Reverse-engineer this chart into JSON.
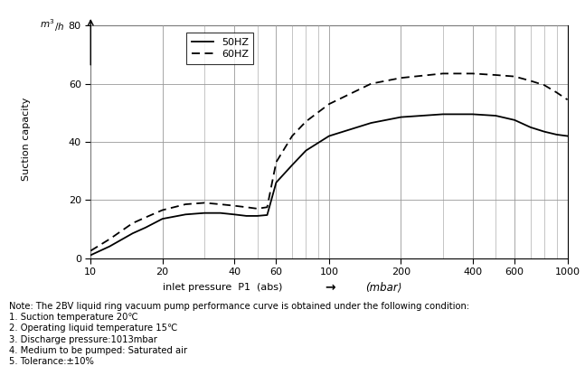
{
  "ylabel": "Suction capacity",
  "y_unit": "m³/h",
  "xlabel": "inlet pressure  P1  (abs)",
  "xlabel_unit": "(mbar⟩",
  "xlim_log": [
    10,
    1000
  ],
  "ylim": [
    0,
    80
  ],
  "yticks": [
    0,
    20,
    40,
    60,
    80
  ],
  "xticks_log": [
    10,
    20,
    40,
    60,
    100,
    200,
    400,
    600,
    1000
  ],
  "grid_color": "#999999",
  "background_color": "#ffffff",
  "curve_color": "#000000",
  "hz50_x": [
    10,
    12,
    15,
    17,
    20,
    25,
    30,
    35,
    40,
    45,
    50,
    55,
    60,
    70,
    80,
    100,
    150,
    200,
    300,
    400,
    500,
    600,
    700,
    800,
    900,
    1000
  ],
  "hz50_y": [
    1.0,
    4.0,
    8.5,
    10.5,
    13.5,
    15.0,
    15.5,
    15.5,
    15.0,
    14.5,
    14.5,
    14.8,
    26.0,
    32.0,
    37.0,
    42.0,
    46.5,
    48.5,
    49.5,
    49.5,
    49.0,
    47.5,
    45.0,
    43.5,
    42.5,
    42.0
  ],
  "hz60_x": [
    10,
    12,
    15,
    17,
    20,
    25,
    30,
    35,
    40,
    45,
    50,
    55,
    60,
    70,
    80,
    100,
    150,
    200,
    300,
    400,
    500,
    600,
    700,
    800,
    900,
    1000
  ],
  "hz60_y": [
    2.5,
    6.5,
    12.0,
    14.0,
    16.5,
    18.5,
    19.0,
    18.5,
    18.0,
    17.5,
    17.0,
    17.5,
    33.0,
    42.0,
    47.0,
    53.0,
    60.0,
    62.0,
    63.5,
    63.5,
    63.0,
    62.5,
    61.0,
    59.5,
    57.0,
    54.5
  ],
  "legend_50hz": "50HZ",
  "legend_60hz": "60HZ",
  "note_lines": [
    "Note: The 2BV liquid ring vacuum pump performance curve is obtained under the following condition:",
    "1. Suction temperature 20℃",
    "2. Operating liquid temperature 15℃",
    "3. Discharge pressure:1013mbar",
    "4. Medium to be pumped: Saturated air",
    "5. Tolerance:±10%"
  ]
}
